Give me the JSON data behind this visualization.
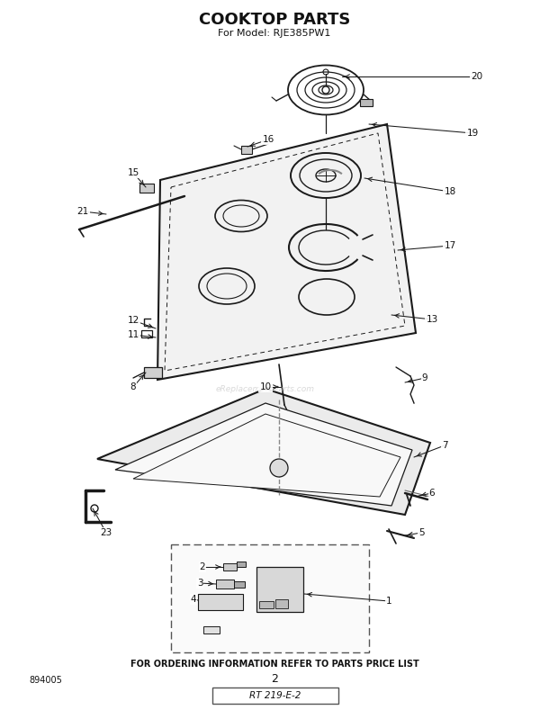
{
  "title": "COOKTOP PARTS",
  "subtitle": "For Model: RJE385PW1",
  "footer_text": "FOR ORDERING INFORMATION REFER TO PARTS PRICE LIST",
  "bottom_left": "894005",
  "bottom_center": "2",
  "bottom_stamp": "RT 219-E-2",
  "watermark": "eReplacementParts.com",
  "bg_color": "#ffffff",
  "line_color": "#1a1a1a",
  "label_color": "#111111",
  "fig_width": 6.2,
  "fig_height": 7.89,
  "dpi": 100
}
